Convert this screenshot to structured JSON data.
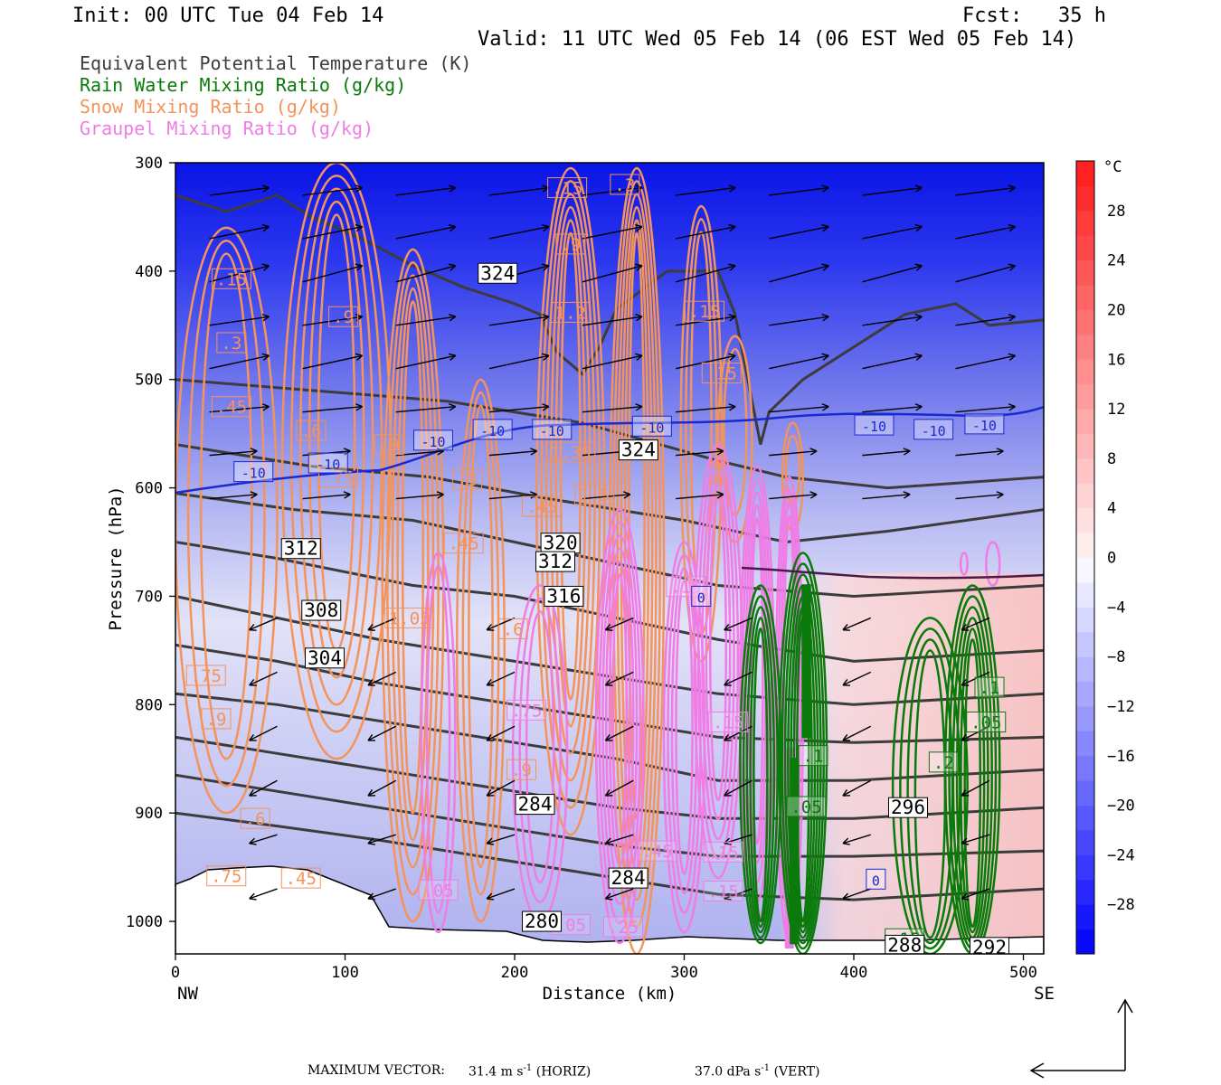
{
  "header": {
    "init": "Init: 00 UTC Tue 04 Feb 14",
    "fcst": "Fcst:   35 h",
    "valid": "Valid: 11 UTC Wed 05 Feb 14 (06 EST Wed 05 Feb 14)"
  },
  "legend": [
    {
      "label": "Equivalent Potential Temperature (K)",
      "color": "#3c3c3c"
    },
    {
      "label": "Rain Water Mixing Ratio (g/kg)",
      "color": "#0a7a0a"
    },
    {
      "label": "Snow Mixing Ratio (g/kg)",
      "color": "#f4935a"
    },
    {
      "label": "Graupel Mixing Ratio (g/kg)",
      "color": "#f07ce6"
    }
  ],
  "footer": {
    "max_vector_label": "MAXIMUM VECTOR:",
    "horiz": "31.4 m s",
    "horiz_unit": "(HORIZ)",
    "vert": "37.0 dPa s",
    "vert_unit": "(VERT)",
    "exp": "-1"
  },
  "chart_data": {
    "type": "heatmap",
    "xlabel": "Distance (km)",
    "ylabel": "Pressure (hPa)",
    "x_ticks": [
      0,
      100,
      200,
      300,
      400,
      500
    ],
    "y_ticks": [
      300,
      400,
      500,
      600,
      700,
      800,
      900,
      1000
    ],
    "xlim": [
      0,
      512
    ],
    "ylim": [
      300,
      1030
    ],
    "x_end_labels": {
      "left": "NW",
      "right": "SE"
    },
    "colorbar": {
      "unit": "°C",
      "ticks": [
        28,
        24,
        20,
        16,
        12,
        8,
        4,
        0,
        -4,
        -8,
        -12,
        -16,
        -20,
        -24,
        -28
      ],
      "range": [
        -32,
        32
      ]
    },
    "theta_e_labels": [
      {
        "x": 190,
        "p": 402,
        "text": "324"
      },
      {
        "x": 273,
        "p": 565,
        "text": "324"
      },
      {
        "x": 74,
        "p": 656,
        "text": "312"
      },
      {
        "x": 86,
        "p": 713,
        "text": "308"
      },
      {
        "x": 88,
        "p": 757,
        "text": "304"
      },
      {
        "x": 229,
        "p": 700,
        "text": "316"
      },
      {
        "x": 227,
        "p": 651,
        "text": "320"
      },
      {
        "x": 224,
        "p": 668,
        "text": "312"
      },
      {
        "x": 212,
        "p": 892,
        "text": "284"
      },
      {
        "x": 267,
        "p": 960,
        "text": "284"
      },
      {
        "x": 216,
        "p": 1000,
        "text": "280"
      },
      {
        "x": 430,
        "p": 1022,
        "text": "288"
      },
      {
        "x": 432,
        "p": 895,
        "text": "296"
      },
      {
        "x": 480,
        "p": 1024,
        "text": "292"
      }
    ],
    "temperature_labels": [
      {
        "x": 46,
        "p": 585,
        "text": "-10"
      },
      {
        "x": 90,
        "p": 577,
        "text": "-10"
      },
      {
        "x": 152,
        "p": 556,
        "text": "-10"
      },
      {
        "x": 187,
        "p": 546,
        "text": "-10"
      },
      {
        "x": 222,
        "p": 546,
        "text": "-10"
      },
      {
        "x": 281,
        "p": 543,
        "text": "-10"
      },
      {
        "x": 412,
        "p": 542,
        "text": "-10"
      },
      {
        "x": 447,
        "p": 546,
        "text": "-10"
      },
      {
        "x": 477,
        "p": 541,
        "text": "-10"
      },
      {
        "x": 413,
        "p": 961,
        "text": "0"
      },
      {
        "x": 310,
        "p": 700,
        "text": "0"
      }
    ],
    "snow_labels": [
      {
        "x": 33,
        "p": 407,
        "text": ".15"
      },
      {
        "x": 33,
        "p": 466,
        "text": ".3"
      },
      {
        "x": 33,
        "p": 525,
        "text": ".45"
      },
      {
        "x": 99,
        "p": 442,
        "text": ".9"
      },
      {
        "x": 80,
        "p": 547,
        "text": ".6"
      },
      {
        "x": 126,
        "p": 560,
        "text": ".9"
      },
      {
        "x": 96,
        "p": 590,
        "text": ".75"
      },
      {
        "x": 231,
        "p": 323,
        "text": ".15"
      },
      {
        "x": 265,
        "p": 320,
        "text": ".3"
      },
      {
        "x": 233,
        "p": 375,
        "text": ".9"
      },
      {
        "x": 233,
        "p": 438,
        "text": "1.2"
      },
      {
        "x": 312,
        "p": 437,
        "text": ".15"
      },
      {
        "x": 322,
        "p": 494,
        "text": ".15"
      },
      {
        "x": 233,
        "p": 567,
        "text": "1.35"
      },
      {
        "x": 247,
        "p": 606,
        "text": "1.5"
      },
      {
        "x": 172,
        "p": 592,
        "text": ".3"
      },
      {
        "x": 216,
        "p": 617,
        "text": ".45"
      },
      {
        "x": 170,
        "p": 651,
        "text": ".45"
      },
      {
        "x": 138,
        "p": 720,
        "text": "1.05"
      },
      {
        "x": 199,
        "p": 730,
        "text": ".6"
      },
      {
        "x": 18,
        "p": 773,
        "text": ".75"
      },
      {
        "x": 24,
        "p": 813,
        "text": ".9"
      },
      {
        "x": 47,
        "p": 905,
        "text": ".6"
      },
      {
        "x": 30,
        "p": 958,
        "text": ".75"
      },
      {
        "x": 74,
        "p": 960,
        "text": ".45"
      },
      {
        "x": 204,
        "p": 860,
        "text": ".9"
      }
    ],
    "graupel_labels": [
      {
        "x": 207,
        "p": 805,
        "text": ".75"
      },
      {
        "x": 301,
        "p": 691,
        "text": ".15"
      },
      {
        "x": 326,
        "p": 816,
        "text": ".15"
      },
      {
        "x": 284,
        "p": 935,
        "text": ".45"
      },
      {
        "x": 323,
        "p": 936,
        "text": ".15"
      },
      {
        "x": 323,
        "p": 972,
        "text": ".15"
      },
      {
        "x": 233,
        "p": 1003,
        "text": ".05"
      },
      {
        "x": 264,
        "p": 1005,
        "text": ".25"
      },
      {
        "x": 155,
        "p": 971,
        "text": ".05"
      }
    ],
    "rain_labels": [
      {
        "x": 372,
        "p": 894,
        "text": ".05"
      },
      {
        "x": 480,
        "p": 784,
        "text": ".1"
      },
      {
        "x": 478,
        "p": 816,
        "text": ".05"
      },
      {
        "x": 453,
        "p": 853,
        "text": ".2"
      },
      {
        "x": 430,
        "p": 1016,
        "text": ".15"
      },
      {
        "x": 376,
        "p": 847,
        "text": ".1"
      }
    ]
  }
}
